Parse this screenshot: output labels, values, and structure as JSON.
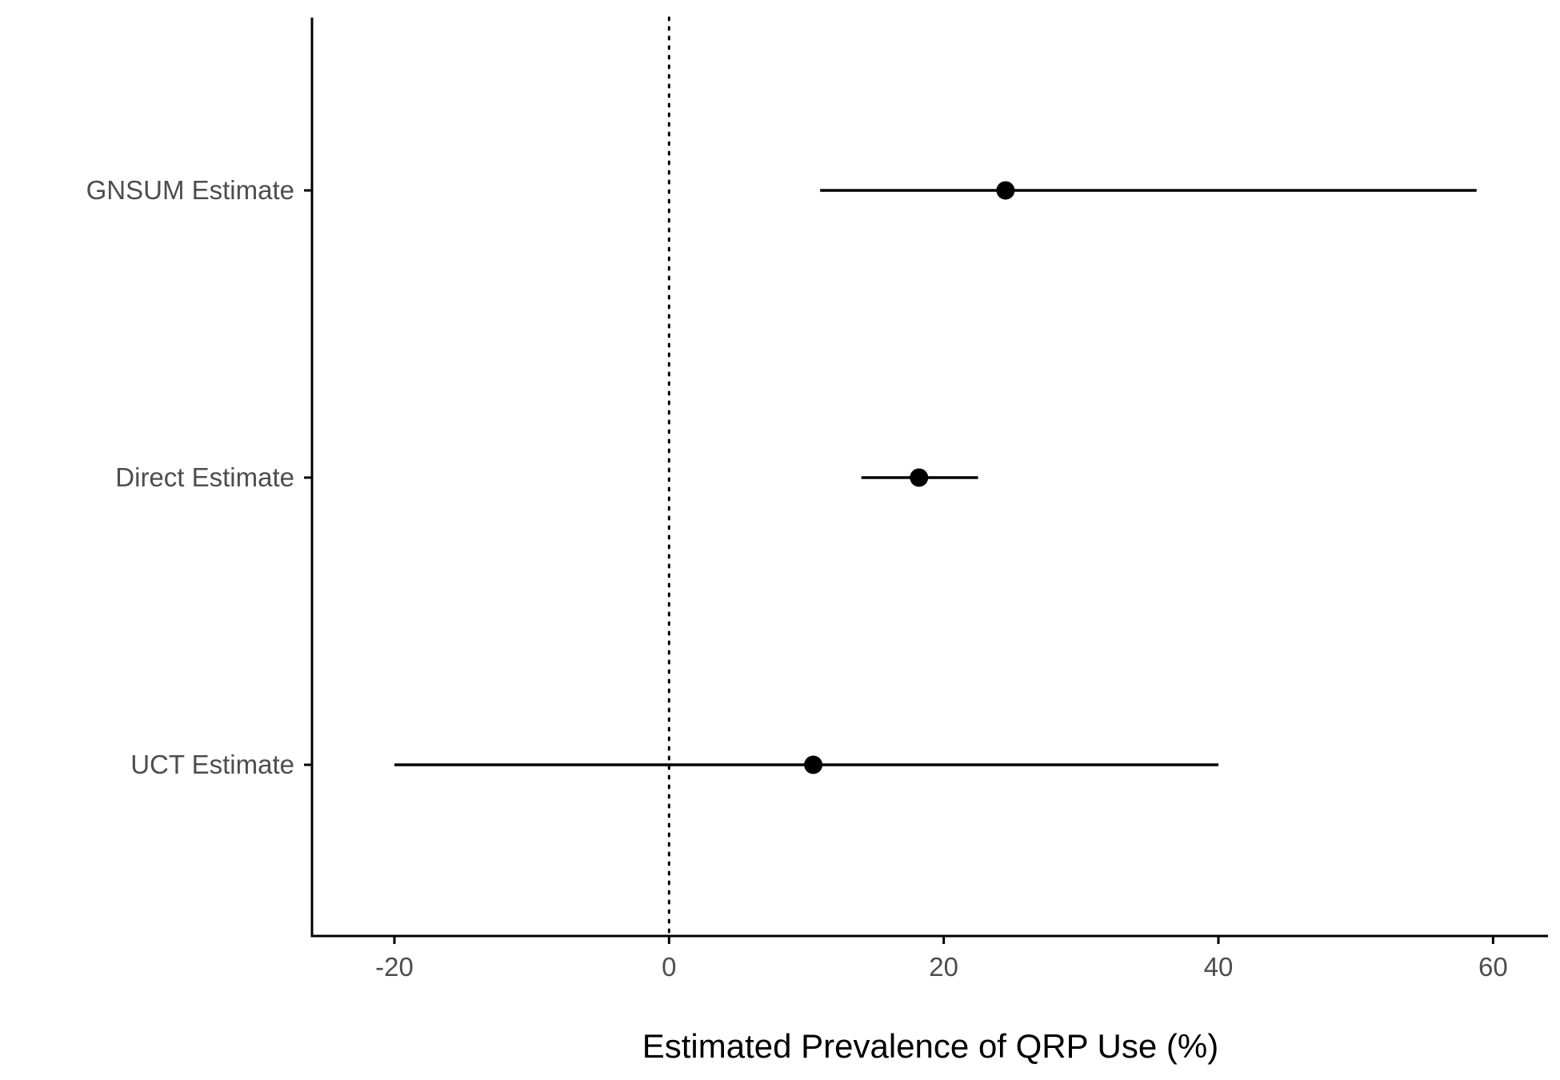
{
  "chart_data": {
    "type": "forest",
    "title": "",
    "xlabel": "Estimated Prevalence of QRP Use (%)",
    "ylabel": "",
    "xlim": [
      -26,
      64
    ],
    "x_ticks": [
      -20,
      0,
      20,
      40,
      60
    ],
    "x_tick_labels": [
      "-20",
      "0",
      "20",
      "40",
      "60"
    ],
    "reference_line": {
      "x": 0,
      "style": "dotted"
    },
    "grid": false,
    "legend": "none",
    "categories": [
      "GNSUM Estimate",
      "Direct Estimate",
      "UCT Estimate"
    ],
    "estimates": [
      {
        "label": "GNSUM Estimate",
        "estimate": 24.5,
        "lower": 11.0,
        "upper": 58.8
      },
      {
        "label": "Direct Estimate",
        "estimate": 18.2,
        "lower": 14.0,
        "upper": 22.5
      },
      {
        "label": "UCT Estimate",
        "estimate": 10.5,
        "lower": -20.0,
        "upper": 40.0
      }
    ],
    "colors": {
      "marks": "#000000",
      "tick_labels": "#4d4d4d"
    }
  }
}
